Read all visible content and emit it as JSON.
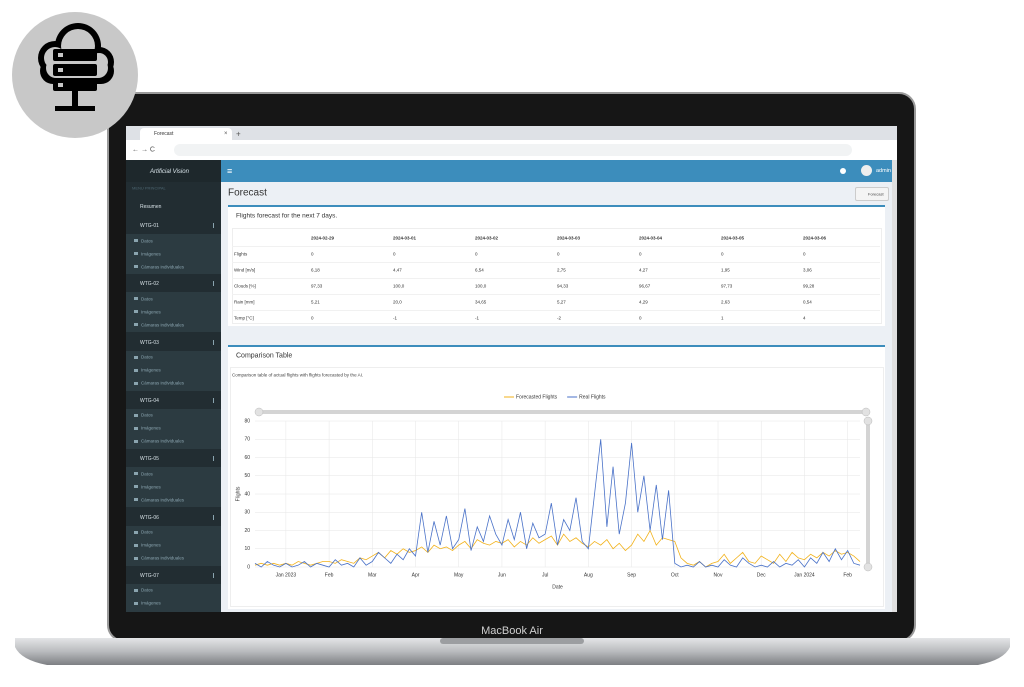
{
  "browser": {
    "tab_title": "Forecast"
  },
  "sidebar": {
    "brand": "Artificial Vision",
    "section": "MENU PRINCIPAL",
    "home": "Resumen",
    "groups": [
      {
        "title": "WTG-01",
        "items": [
          "Datos",
          "Imágenes",
          "Cámaras individuales"
        ]
      },
      {
        "title": "WTG-02",
        "items": [
          "Datos",
          "Imágenes",
          "Cámaras individuales"
        ]
      },
      {
        "title": "WTG-03",
        "items": [
          "Datos",
          "Imágenes",
          "Cámaras individuales"
        ]
      },
      {
        "title": "WTG-04",
        "items": [
          "Datos",
          "Imágenes",
          "Cámaras individuales"
        ]
      },
      {
        "title": "WTG-05",
        "items": [
          "Datos",
          "Imágenes",
          "Cámaras individuales"
        ]
      },
      {
        "title": "WTG-06",
        "items": [
          "Datos",
          "Imágenes",
          "Cámaras individuales"
        ]
      },
      {
        "title": "WTG-07",
        "items": [
          "Datos",
          "Imágenes"
        ]
      }
    ]
  },
  "topbar": {
    "user": "admin"
  },
  "page": {
    "title": "Forecast",
    "breadcrumb": "Forecast"
  },
  "forecast_card": {
    "title": "Flights forecast for the next 7 days.",
    "table": {
      "columns": [
        "2024-02-29",
        "2024-03-01",
        "2024-03-02",
        "2024-03-03",
        "2024-03-04",
        "2024-03-05",
        "2024-03-06"
      ],
      "rows": [
        {
          "label": "Flights",
          "cells": [
            "0",
            "0",
            "0",
            "0",
            "0",
            "0",
            "0"
          ]
        },
        {
          "label": "Wind [m/s]",
          "cells": [
            "6,18",
            "4,47",
            "6,54",
            "2,75",
            "4,27",
            "1,95",
            "3,06"
          ]
        },
        {
          "label": "Clouds [%]",
          "cells": [
            "97,33",
            "100,0",
            "100,0",
            "94,33",
            "96,67",
            "97,73",
            "99,28"
          ]
        },
        {
          "label": "Rain [mm]",
          "cells": [
            "5,21",
            "20,0",
            "34,65",
            "5,27",
            "4,29",
            "2,63",
            "0,54"
          ]
        },
        {
          "label": "Temp [°C]",
          "cells": [
            "0",
            "-1",
            "-1",
            "-2",
            "0",
            "1",
            "4"
          ]
        }
      ]
    }
  },
  "chart_data": {
    "type": "line",
    "title": "Comparison Table",
    "subtitle": "Comparison table of actual flights with flights forecasted by the AI.",
    "x_label": "Date",
    "y_label": "Flights",
    "legend": "top",
    "grid": true,
    "categories": [
      null,
      null,
      null,
      null,
      null,
      "Jan 2023",
      null,
      null,
      null,
      null,
      null,
      null,
      "Feb",
      null,
      null,
      null,
      null,
      null,
      null,
      "Mar",
      null,
      null,
      null,
      null,
      null,
      null,
      "Apr",
      null,
      null,
      null,
      null,
      null,
      null,
      "May",
      null,
      null,
      null,
      null,
      null,
      null,
      "Jun",
      null,
      null,
      null,
      null,
      null,
      null,
      "Jul",
      null,
      null,
      null,
      null,
      null,
      null,
      "Aug",
      null,
      null,
      null,
      null,
      null,
      null,
      "Sep",
      null,
      null,
      null,
      null,
      null,
      null,
      "Oct",
      null,
      null,
      null,
      null,
      null,
      null,
      "Nov",
      null,
      null,
      null,
      null,
      null,
      null,
      "Dec",
      null,
      null,
      null,
      null,
      null,
      null,
      "Jan 2024",
      null,
      null,
      null,
      null,
      null,
      null,
      "Feb",
      null,
      null
    ],
    "ylim": [
      0,
      80
    ],
    "yticks": [
      0,
      10,
      20,
      30,
      40,
      50,
      60,
      70,
      80
    ],
    "series": [
      {
        "name": "Forecasted Flights",
        "color": "#f2b21b",
        "values": [
          1,
          2,
          1,
          2,
          1,
          2,
          1,
          3,
          2,
          1,
          2,
          3,
          3,
          2,
          4,
          3,
          2,
          5,
          4,
          6,
          8,
          5,
          9,
          7,
          10,
          8,
          9,
          11,
          8,
          12,
          10,
          11,
          9,
          12,
          14,
          10,
          15,
          13,
          12,
          14,
          13,
          15,
          11,
          14,
          12,
          16,
          13,
          15,
          17,
          12,
          18,
          14,
          16,
          13,
          11,
          14,
          12,
          15,
          10,
          13,
          9,
          12,
          18,
          14,
          20,
          12,
          16,
          15,
          14,
          5,
          2,
          1,
          3,
          0,
          2,
          3,
          7,
          2,
          5,
          8,
          3,
          2,
          6,
          4,
          2,
          7,
          3,
          8,
          5,
          4,
          7,
          5,
          8,
          6,
          9,
          7,
          8,
          6,
          3
        ]
      },
      {
        "name": "Real Flights",
        "color": "#4a72c8",
        "values": [
          2,
          0,
          3,
          1,
          0,
          2,
          0,
          1,
          3,
          0,
          2,
          1,
          0,
          4,
          1,
          2,
          0,
          5,
          1,
          3,
          8,
          5,
          2,
          7,
          4,
          10,
          6,
          30,
          8,
          25,
          12,
          28,
          10,
          15,
          32,
          9,
          22,
          14,
          28,
          18,
          12,
          26,
          15,
          30,
          10,
          24,
          16,
          18,
          35,
          12,
          26,
          20,
          38,
          14,
          10,
          40,
          70,
          22,
          55,
          18,
          35,
          68,
          30,
          50,
          20,
          45,
          15,
          42,
          2,
          0,
          1,
          0,
          3,
          0,
          1,
          0,
          4,
          1,
          0,
          5,
          2,
          0,
          1,
          0,
          3,
          0,
          2,
          1,
          4,
          0,
          5,
          2,
          8,
          3,
          10,
          4,
          9,
          2,
          1
        ]
      }
    ]
  },
  "device": {
    "label": "MacBook Air"
  }
}
